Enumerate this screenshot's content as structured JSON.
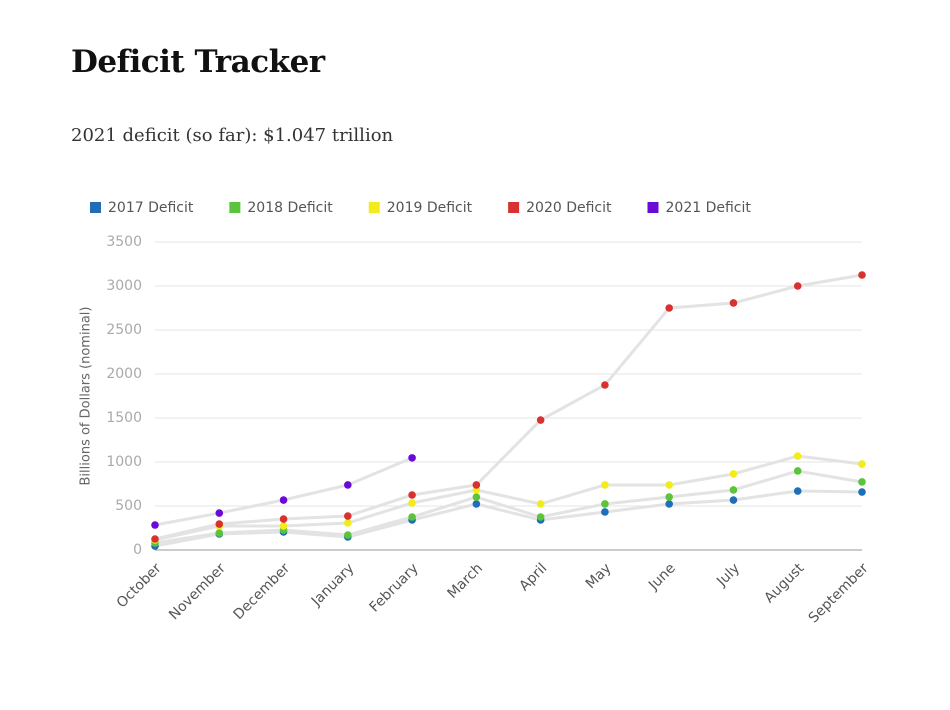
{
  "chart_data": {
    "type": "line",
    "title": "Deficit Tracker",
    "subtitle": "2021 deficit (so far): $1.047 trillion",
    "y_label": "Billions of Dollars (nominal)",
    "categories": [
      "October",
      "November",
      "December",
      "January",
      "February",
      "March",
      "April",
      "May",
      "June",
      "July",
      "August",
      "September"
    ],
    "series": [
      {
        "name": "2017 Deficit",
        "color": "#1f6fb8",
        "values": [
          45,
          182,
          205,
          148,
          341,
          523,
          341,
          432,
          523,
          568,
          670,
          659
        ]
      },
      {
        "name": "2018 Deficit",
        "color": "#5cc43a",
        "values": [
          80,
          193,
          227,
          170,
          375,
          602,
          375,
          523,
          602,
          682,
          898,
          773
        ]
      },
      {
        "name": "2019 Deficit",
        "color": "#f2ec1c",
        "values": [
          114,
          273,
          273,
          307,
          534,
          682,
          523,
          739,
          739,
          864,
          1068,
          977
        ]
      },
      {
        "name": "2020 Deficit",
        "color": "#d8312f",
        "values": [
          125,
          295,
          352,
          386,
          625,
          739,
          1477,
          1875,
          2750,
          2807,
          3000,
          3125
        ]
      },
      {
        "name": "2021 Deficit",
        "color": "#6a0ad6",
        "values": [
          284,
          420,
          568,
          739,
          1047,
          null,
          null,
          null,
          null,
          null,
          null,
          null
        ]
      }
    ],
    "line_color": "#e3e3e3",
    "ylim": [
      0,
      3500
    ],
    "yticks": [
      0,
      500,
      1000,
      1500,
      2000,
      2500,
      3000,
      3500
    ],
    "grid": true,
    "legend": "top"
  }
}
